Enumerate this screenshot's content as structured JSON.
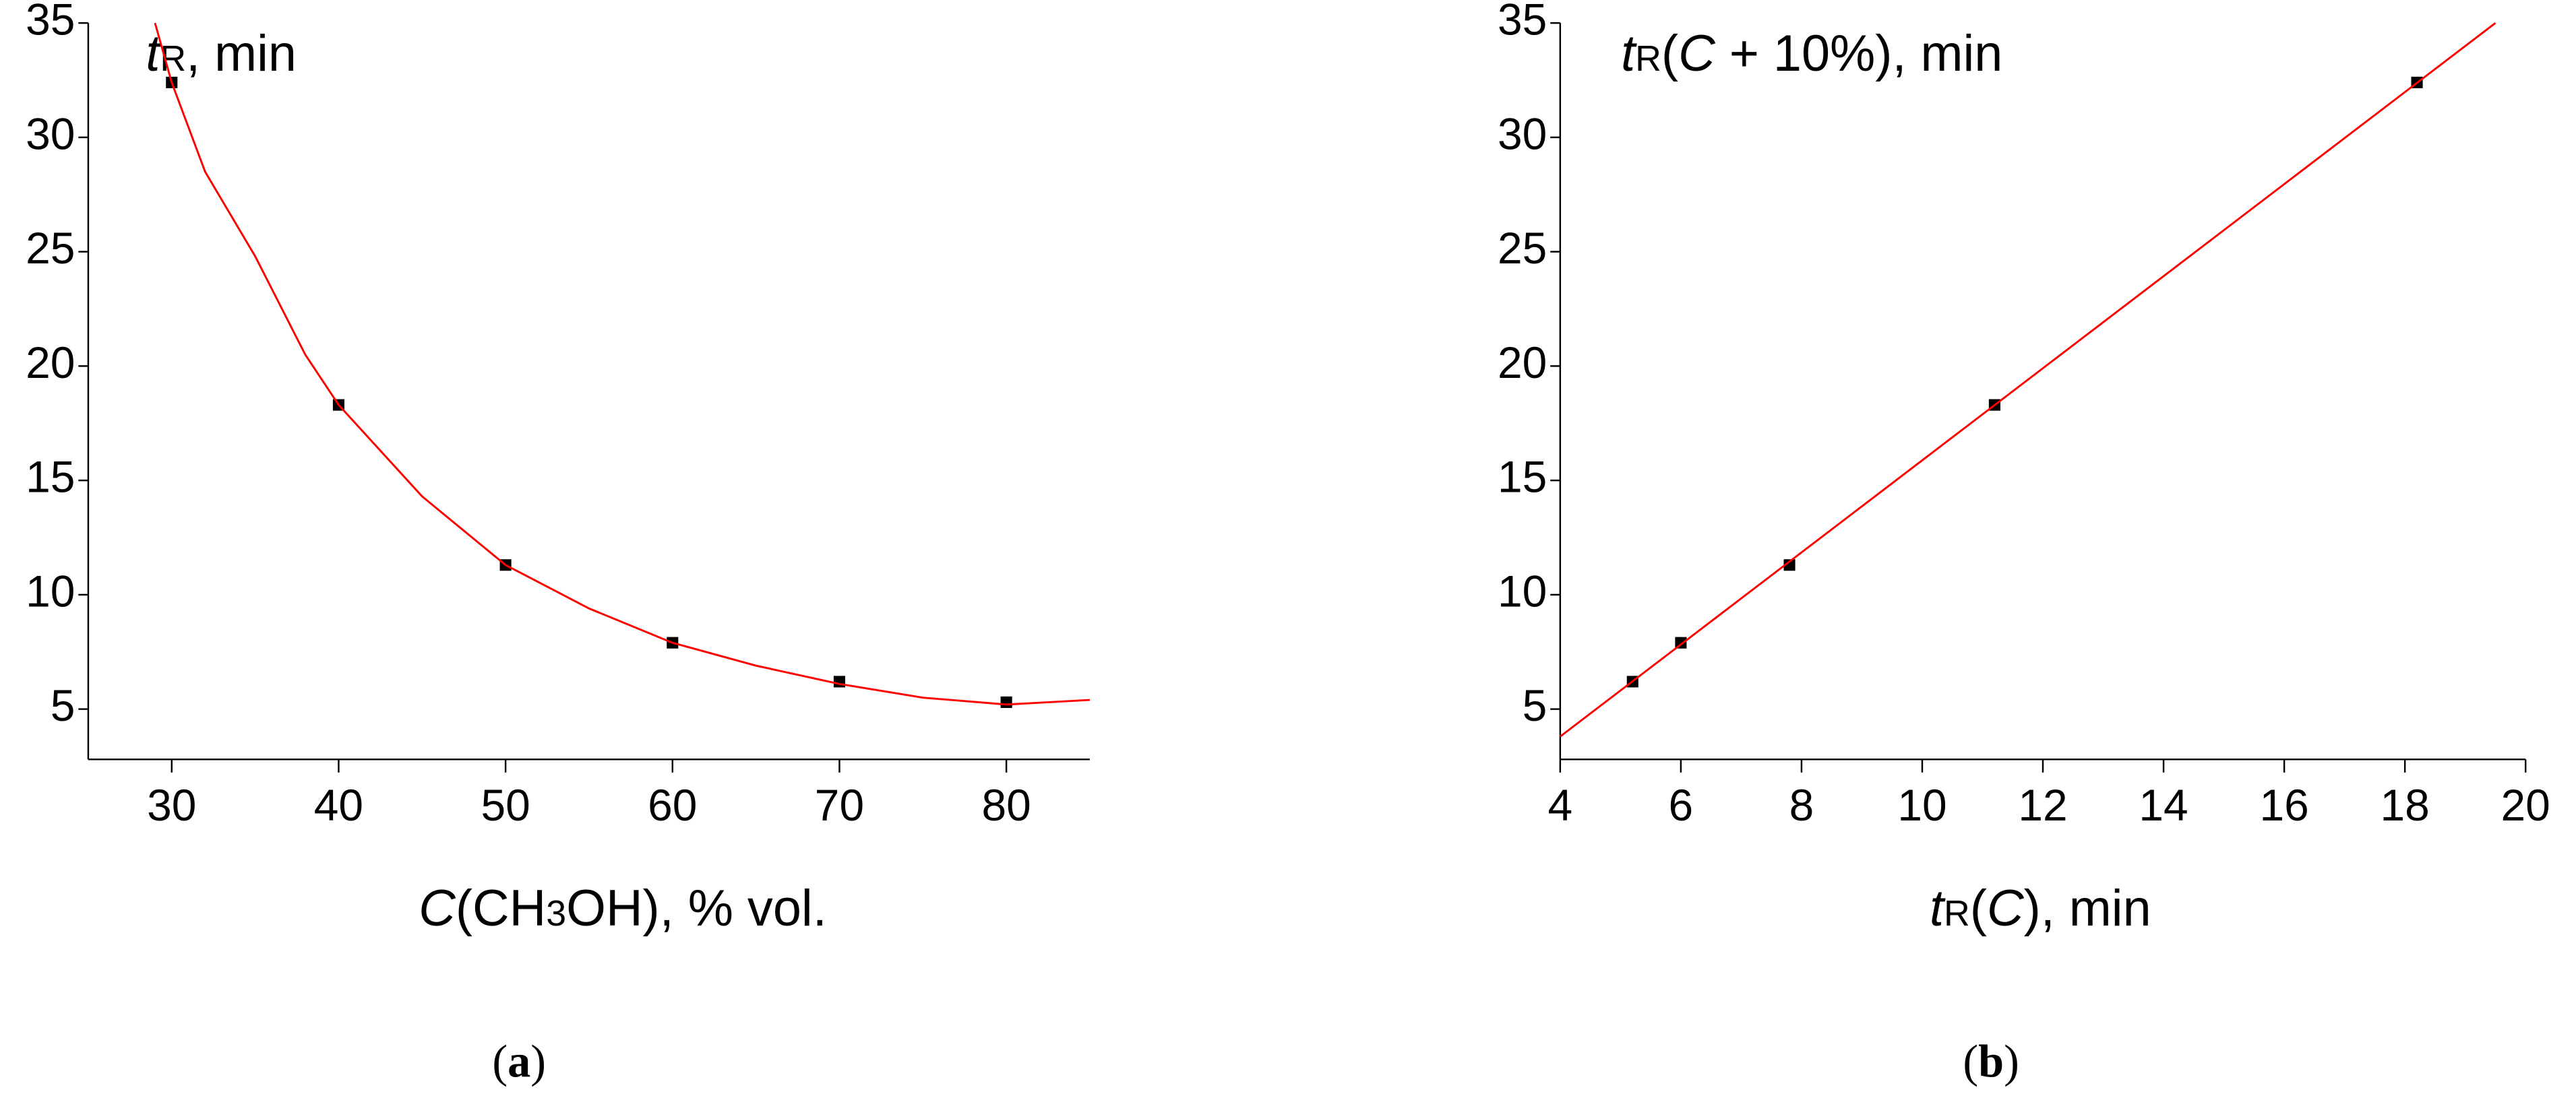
{
  "chart_data": [
    {
      "type": "scatter",
      "ylabel": [
        "t",
        "R",
        ", min"
      ],
      "xlabel": [
        "C",
        "(CH",
        "3",
        "OH), % vol."
      ],
      "panel_label": [
        "(",
        "a",
        ")"
      ],
      "xlim": [
        25,
        85
      ],
      "ylim": [
        2.8,
        35
      ],
      "xticks": [
        30,
        40,
        50,
        60,
        70,
        80
      ],
      "yticks": [
        5,
        10,
        15,
        20,
        25,
        30,
        35
      ],
      "series": [
        {
          "color": "#000000",
          "x": [
            30,
            40,
            50,
            60,
            70,
            80
          ],
          "values": [
            32.4,
            18.3,
            11.3,
            7.9,
            6.2,
            5.3
          ]
        },
        {
          "color": "#ff0000",
          "style": "line",
          "x": [
            29,
            30,
            32,
            35,
            38,
            40,
            45,
            50,
            55,
            60,
            65,
            70,
            75,
            80,
            85
          ],
          "values": [
            35,
            32.4,
            28.5,
            24.8,
            20.5,
            18.3,
            14.3,
            11.3,
            9.4,
            7.9,
            6.9,
            6.1,
            5.5,
            5.2,
            5.4
          ]
        }
      ]
    },
    {
      "type": "scatter",
      "ylabel": [
        "t",
        "R",
        "(",
        "C",
        " + 10%), min"
      ],
      "xlabel": [
        "t",
        "R",
        "(",
        "C",
        "), min"
      ],
      "panel_label": [
        "(",
        "b",
        ")"
      ],
      "xlim": [
        4,
        20
      ],
      "ylim": [
        2.8,
        35
      ],
      "xticks": [
        4,
        6,
        8,
        10,
        12,
        14,
        16,
        18,
        20
      ],
      "yticks": [
        5,
        10,
        15,
        20,
        25,
        30,
        35
      ],
      "series": [
        {
          "color": "#000000",
          "x": [
            5.2,
            6.0,
            7.8,
            11.2,
            18.2
          ],
          "values": [
            6.2,
            7.9,
            11.3,
            18.3,
            32.4
          ]
        },
        {
          "color": "#ff0000",
          "style": "line",
          "x": [
            4,
            19.5
          ],
          "values": [
            3.8,
            35
          ]
        }
      ]
    }
  ]
}
